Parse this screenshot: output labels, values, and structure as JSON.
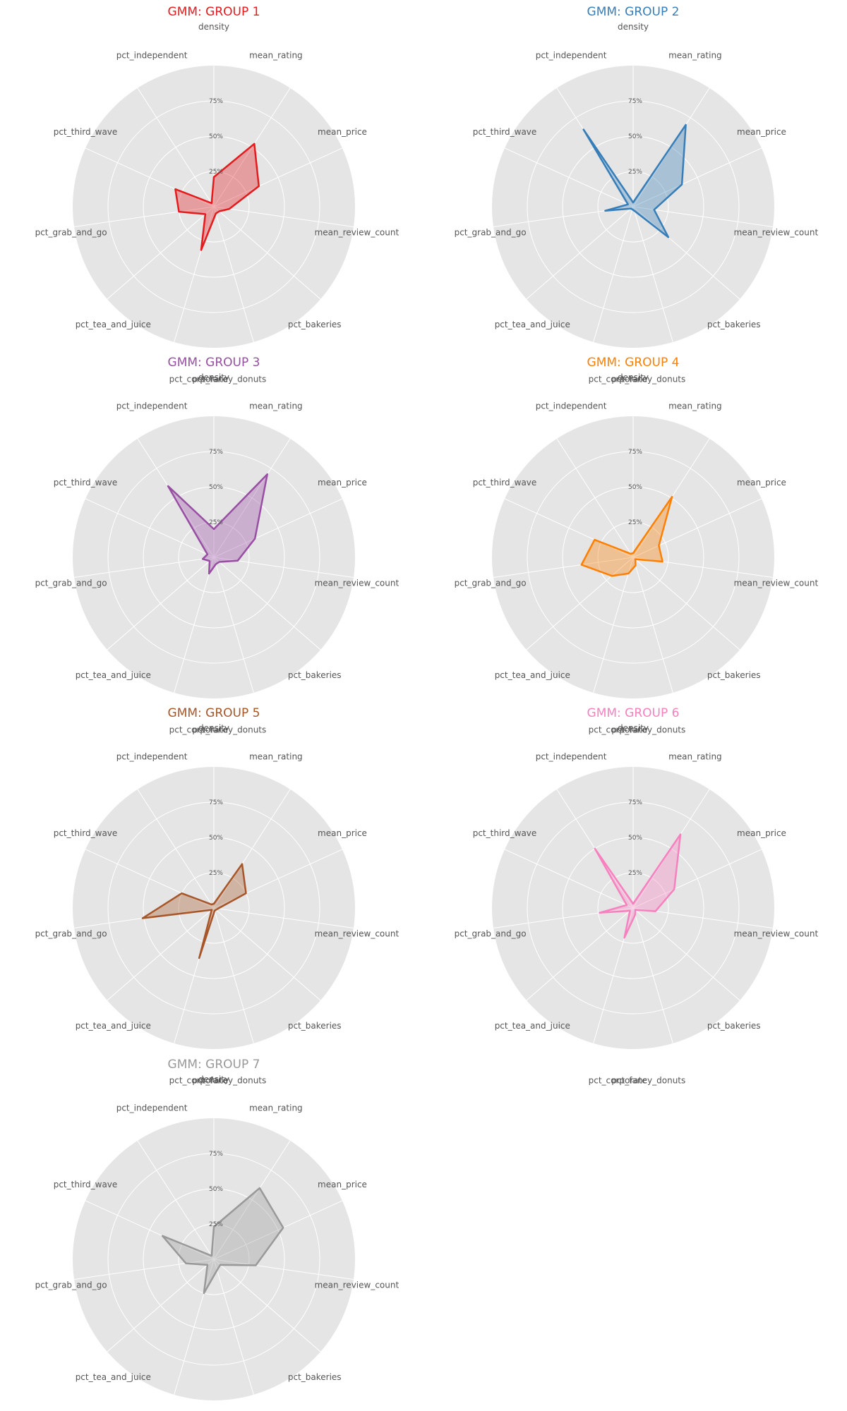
{
  "chart_data": {
    "type": "radar",
    "axes": [
      "density",
      "mean_rating",
      "mean_price",
      "mean_review_count",
      "pct_bakeries",
      "pct_fancy_donuts",
      "pct_corporate",
      "pct_tea_and_juice",
      "pct_grab_and_go",
      "pct_third_wave",
      "pct_independent"
    ],
    "radial_ticks": [
      "25%",
      "50%",
      "75%"
    ],
    "radial_tick_values": [
      25,
      50,
      75
    ],
    "rlim": [
      0,
      100
    ],
    "grid": true,
    "panels": [
      {
        "title": "GMM: GROUP 1",
        "color": "#e41a1c",
        "values": [
          21,
          53,
          35,
          11,
          5,
          5,
          32,
          8,
          25,
          30,
          3
        ]
      },
      {
        "title": "GMM: GROUP 2",
        "color": "#377eb8",
        "values": [
          3,
          69,
          38,
          15,
          33,
          3,
          2,
          2,
          20,
          4,
          65
        ]
      },
      {
        "title": "GMM: GROUP 3",
        "color": "#984ea3",
        "values": [
          20,
          70,
          32,
          17,
          5,
          5,
          12,
          4,
          8,
          5,
          60
        ]
      },
      {
        "title": "GMM: GROUP 4",
        "color": "#ff7f00",
        "values": [
          3,
          51,
          20,
          21,
          2,
          6,
          12,
          20,
          37,
          30,
          3
        ]
      },
      {
        "title": "GMM: GROUP 5",
        "color": "#a65628",
        "values": [
          3,
          37,
          25,
          3,
          2,
          2,
          37,
          2,
          51,
          25,
          3
        ]
      },
      {
        "title": "GMM: GROUP 6",
        "color": "#f781bf",
        "values": [
          3,
          62,
          32,
          16,
          2,
          5,
          22,
          3,
          24,
          5,
          50
        ]
      },
      {
        "title": "GMM: GROUP 7",
        "color": "#999999",
        "values": [
          23,
          60,
          54,
          30,
          6,
          8,
          25,
          6,
          20,
          40,
          3
        ]
      }
    ]
  }
}
